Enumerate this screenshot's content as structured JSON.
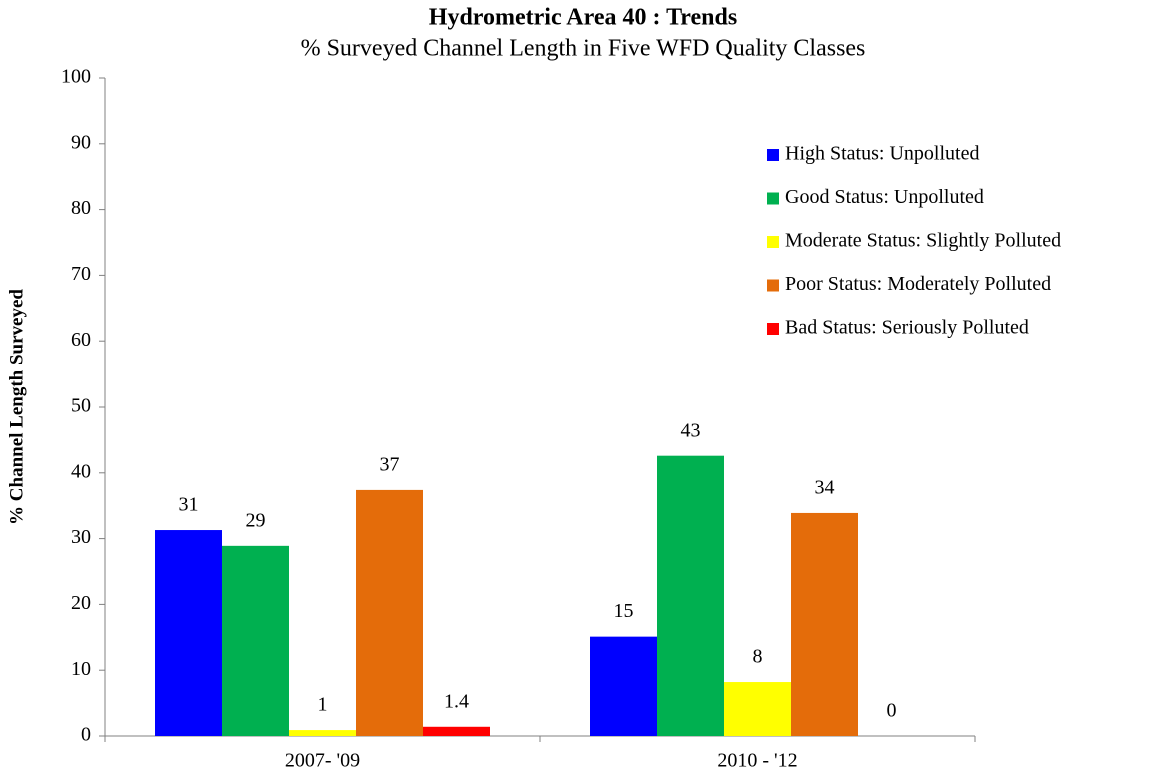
{
  "chart_data": {
    "type": "bar",
    "title": "Hydrometric Area 40  :  Trends",
    "subtitle": "% Surveyed Channel Length in Five WFD Quality Classes",
    "y_label": "% Channel Length Surveyed",
    "categories": [
      "2007- '09",
      "2010 - '12"
    ],
    "series": [
      {
        "name": "High Status: Unpolluted",
        "color": "#0000ff",
        "values": [
          31.3,
          15.1
        ],
        "value_labels": [
          "31",
          "15"
        ]
      },
      {
        "name": "Good Status: Unpolluted",
        "color": "#00b050",
        "values": [
          28.9,
          42.6
        ],
        "value_labels": [
          "29",
          "43"
        ]
      },
      {
        "name": "Moderate Status: Slightly Polluted",
        "color": "#ffff00",
        "values": [
          0.9,
          8.2
        ],
        "value_labels": [
          "1",
          "8"
        ]
      },
      {
        "name": "Poor Status: Moderately Polluted",
        "color": "#e46c0a",
        "values": [
          37.4,
          33.9
        ],
        "value_labels": [
          "37",
          "34"
        ]
      },
      {
        "name": "Bad Status: Seriously Polluted",
        "color": "#ff0000",
        "values": [
          1.4,
          0
        ],
        "value_labels": [
          "1.4",
          "0"
        ]
      }
    ],
    "ylim": [
      0,
      100
    ],
    "yticks": [
      0,
      10,
      20,
      30,
      40,
      50,
      60,
      70,
      80,
      90,
      100
    ],
    "grid": false,
    "legend": "upper right"
  }
}
